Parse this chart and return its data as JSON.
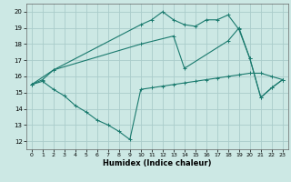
{
  "title": "",
  "xlabel": "Humidex (Indice chaleur)",
  "background_color": "#cce8e4",
  "grid_color": "#aaccca",
  "line_color": "#1a7a6e",
  "xlim": [
    -0.5,
    23.5
  ],
  "ylim": [
    11.5,
    20.5
  ],
  "yticks": [
    12,
    13,
    14,
    15,
    16,
    17,
    18,
    19,
    20
  ],
  "xticks": [
    0,
    1,
    2,
    3,
    4,
    5,
    6,
    7,
    8,
    9,
    10,
    11,
    12,
    13,
    14,
    15,
    16,
    17,
    18,
    19,
    20,
    21,
    22,
    23
  ],
  "series": [
    {
      "x": [
        0,
        1,
        2,
        10,
        11,
        12,
        13,
        14,
        15,
        16,
        17,
        18,
        19,
        20,
        21,
        22,
        23
      ],
      "y": [
        15.5,
        15.8,
        16.4,
        19.2,
        19.5,
        20.0,
        19.5,
        19.2,
        19.1,
        19.5,
        19.5,
        19.8,
        18.9,
        17.1,
        14.7,
        15.3,
        15.8
      ]
    },
    {
      "x": [
        0,
        2,
        10,
        13,
        14,
        18,
        19,
        20,
        21,
        22,
        23
      ],
      "y": [
        15.5,
        16.4,
        18.0,
        18.5,
        16.5,
        18.2,
        19.0,
        17.1,
        14.7,
        15.3,
        15.8
      ]
    },
    {
      "x": [
        0,
        1,
        2,
        3,
        4,
        5,
        6,
        7,
        8,
        9,
        10,
        11,
        12,
        13,
        14,
        15,
        16,
        17,
        18,
        19,
        20,
        21,
        22,
        23
      ],
      "y": [
        15.5,
        15.7,
        15.2,
        14.8,
        14.2,
        13.8,
        13.3,
        13.0,
        12.6,
        12.1,
        15.2,
        15.3,
        15.4,
        15.5,
        15.6,
        15.7,
        15.8,
        15.9,
        16.0,
        16.1,
        16.2,
        16.2,
        16.0,
        15.8
      ]
    }
  ]
}
